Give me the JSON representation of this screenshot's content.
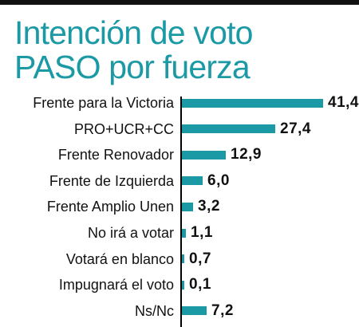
{
  "chart_data": {
    "type": "bar",
    "orientation": "horizontal",
    "title_lines": [
      "Intención de voto",
      "PASO por fuerza"
    ],
    "categories": [
      "Frente para la Victoria",
      "PRO+UCR+CC",
      "Frente Renovador",
      "Frente de Izquierda",
      "Frente Amplio Unen",
      "No irá a votar",
      "Votará en blanco",
      "Impugnará el voto",
      "Ns/Nc"
    ],
    "values": [
      41.4,
      27.4,
      12.9,
      6.0,
      3.2,
      1.1,
      0.7,
      0.1,
      7.2
    ],
    "value_labels": [
      "41,4",
      "27,4",
      "12,9",
      "6,0",
      "3,2",
      "1,1",
      "0,7",
      "0,1",
      "7,2"
    ],
    "xlim": [
      0,
      41.4
    ],
    "grid": false,
    "legend": "none",
    "bar_color": "#1b9aa6",
    "title_color": "#1b9aa6"
  }
}
